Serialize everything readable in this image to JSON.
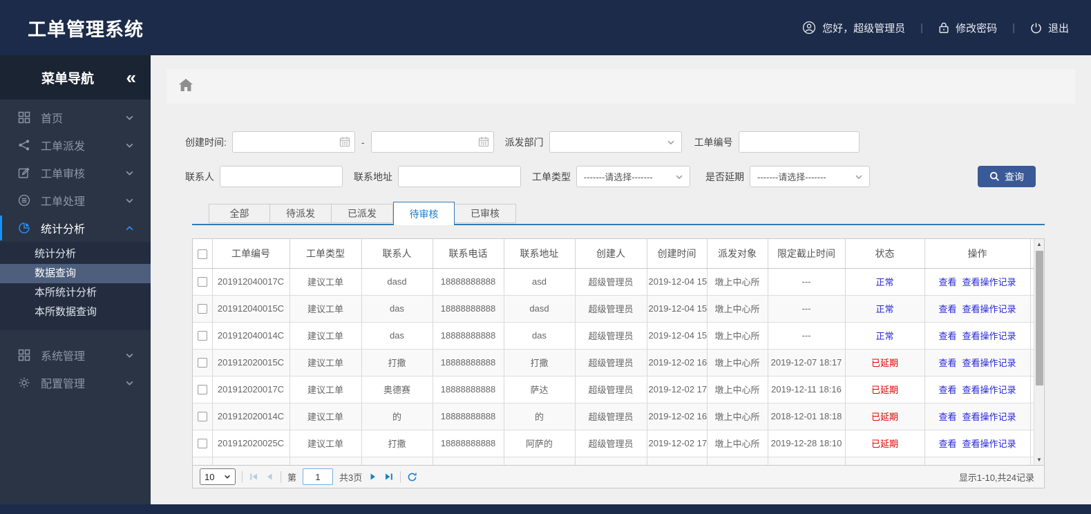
{
  "colors": {
    "header_bg": "#1d2b4a",
    "sidebar_bg": "#2a3444",
    "sidebar_header_bg": "#1a2433",
    "submenu_selected_bg": "#4e5f7e",
    "accent_blue": "#1890ff",
    "tab_blue": "#2e7bb5",
    "button_blue": "#3a5a97",
    "link_blue": "#2626d9",
    "status_normal_blue": "#2626d9",
    "status_overdue_red": "#e60000",
    "content_bg": "#efefef"
  },
  "header": {
    "title": "工单管理系统",
    "greeting": "您好，超级管理员",
    "change_password": "修改密码",
    "logout": "退出",
    "divider": "|"
  },
  "sidebar": {
    "nav_title": "菜单导航",
    "collapse_glyph": "«",
    "items": [
      {
        "id": "home",
        "label": "首页",
        "icon": "grid",
        "expanded": false
      },
      {
        "id": "dispatch",
        "label": "工单派发",
        "icon": "share",
        "expanded": false
      },
      {
        "id": "review",
        "label": "工单审核",
        "icon": "edit",
        "expanded": false
      },
      {
        "id": "process",
        "label": "工单处理",
        "icon": "process",
        "expanded": false
      },
      {
        "id": "stats",
        "label": "统计分析",
        "icon": "pie",
        "expanded": true,
        "active": true,
        "children": [
          {
            "id": "stats-analysis",
            "label": "统计分析",
            "selected": false
          },
          {
            "id": "data-query",
            "label": "数据查询",
            "selected": true
          },
          {
            "id": "office-stats",
            "label": "本所统计分析",
            "selected": false
          },
          {
            "id": "office-data-query",
            "label": "本所数据查询",
            "selected": false
          }
        ]
      },
      {
        "id": "system",
        "label": "系统管理",
        "icon": "modules",
        "expanded": false
      },
      {
        "id": "config",
        "label": "配置管理",
        "icon": "gear",
        "expanded": false
      }
    ]
  },
  "filters": {
    "create_time": {
      "label": "创建时间:",
      "start_value": "",
      "end_value": "",
      "separator": "-"
    },
    "dispatch_dept": {
      "label": "派发部门",
      "value": ""
    },
    "order_no": {
      "label": "工单编号",
      "value": ""
    },
    "contact": {
      "label": "联系人",
      "value": ""
    },
    "address": {
      "label": "联系地址",
      "value": ""
    },
    "order_type": {
      "label": "工单类型",
      "value": "-------请选择-------"
    },
    "is_delayed": {
      "label": "是否延期",
      "value": "-------请选择-------"
    },
    "search_label": "查询"
  },
  "tabs": {
    "items": [
      {
        "id": "all",
        "label": "全部",
        "active": false
      },
      {
        "id": "pending-dispatch",
        "label": "待派发",
        "active": false
      },
      {
        "id": "dispatched",
        "label": "已派发",
        "active": false
      },
      {
        "id": "pending-review",
        "label": "待审核",
        "active": true
      },
      {
        "id": "reviewed",
        "label": "已审核",
        "active": false
      }
    ]
  },
  "table": {
    "columns": [
      "工单编号",
      "工单类型",
      "联系人",
      "联系电话",
      "联系地址",
      "创建人",
      "创建时间",
      "派发对象",
      "限定截止时间",
      "状态",
      "操作"
    ],
    "action_labels": [
      "查看",
      "查看操作记录"
    ],
    "rows": [
      {
        "order_no": "201912040017C",
        "type": "建议工单",
        "contact": "dasd",
        "phone": "18888888888",
        "address": "asd",
        "creator": "超级管理员",
        "created": "2019-12-04 15",
        "target": "墩上中心所",
        "deadline": "---",
        "status": "正常",
        "status_type": "ok",
        "has_actions": true
      },
      {
        "order_no": "201912040015C",
        "type": "建议工单",
        "contact": "das",
        "phone": "18888888888",
        "address": "dasd",
        "creator": "超级管理员",
        "created": "2019-12-04 15",
        "target": "墩上中心所",
        "deadline": "---",
        "status": "正常",
        "status_type": "ok",
        "has_actions": true
      },
      {
        "order_no": "201912040014C",
        "type": "建议工单",
        "contact": "das",
        "phone": "18888888888",
        "address": "das",
        "creator": "超级管理员",
        "created": "2019-12-04 15",
        "target": "墩上中心所",
        "deadline": "---",
        "status": "正常",
        "status_type": "ok",
        "has_actions": true
      },
      {
        "order_no": "201912020015C",
        "type": "建议工单",
        "contact": "打撒",
        "phone": "18888888888",
        "address": "打撒",
        "creator": "超级管理员",
        "created": "2019-12-02 16",
        "target": "墩上中心所",
        "deadline": "2019-12-07 18:17",
        "status": "已延期",
        "status_type": "overdue",
        "has_actions": true
      },
      {
        "order_no": "201912020017C",
        "type": "建议工单",
        "contact": "奥德赛",
        "phone": "18888888888",
        "address": "萨达",
        "creator": "超级管理员",
        "created": "2019-12-02 17",
        "target": "墩上中心所",
        "deadline": "2019-12-11 18:16",
        "status": "已延期",
        "status_type": "overdue",
        "has_actions": true
      },
      {
        "order_no": "201912020014C",
        "type": "建议工单",
        "contact": "的",
        "phone": "18888888888",
        "address": "的",
        "creator": "超级管理员",
        "created": "2019-12-02 16",
        "target": "墩上中心所",
        "deadline": "2018-12-01 18:18",
        "status": "已延期",
        "status_type": "overdue",
        "has_actions": true
      },
      {
        "order_no": "201912020025C",
        "type": "建议工单",
        "contact": "打撒",
        "phone": "18888888888",
        "address": "阿萨的",
        "creator": "超级管理员",
        "created": "2019-12-02 17",
        "target": "墩上中心所",
        "deadline": "2019-12-28 18:10",
        "status": "已延期",
        "status_type": "overdue",
        "has_actions": true
      },
      {
        "order_no": "",
        "type": "",
        "contact": "",
        "phone": "",
        "address": "",
        "creator": "",
        "created": "",
        "target": "",
        "deadline": "",
        "status": "",
        "status_type": "",
        "has_actions": false
      }
    ]
  },
  "pagination": {
    "page_size": "10",
    "page_prefix": "第",
    "current_page": "1",
    "total_pages": "共3页",
    "summary": "显示1-10,共24记录"
  }
}
